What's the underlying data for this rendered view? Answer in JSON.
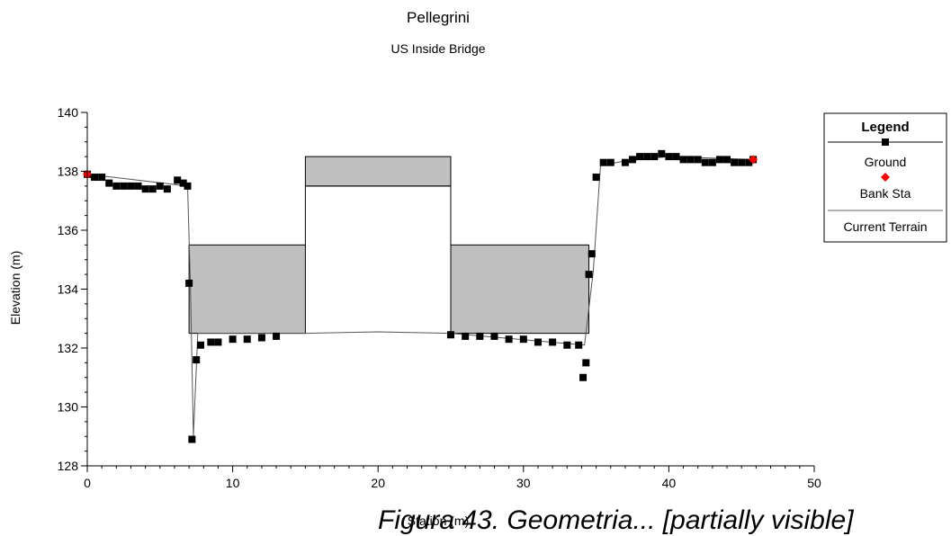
{
  "chart_data": {
    "type": "line",
    "title": "Pellegrini",
    "subtitle": "US Inside Bridge",
    "xlabel": "Station (m)",
    "ylabel": "Elevation (m)",
    "xlim": [
      0,
      50
    ],
    "ylim": [
      128,
      140
    ],
    "xticks": [
      0,
      10,
      20,
      30,
      40,
      50
    ],
    "yticks": [
      128,
      130,
      132,
      134,
      136,
      138,
      140
    ],
    "grid": false,
    "legend_position": "right",
    "legend": {
      "title": "Legend",
      "items": [
        "Ground",
        "Bank Sta",
        "Current Terrain"
      ]
    },
    "series": [
      {
        "name": "Ground",
        "color": "#000000",
        "marker": "square",
        "x": [
          0,
          0.5,
          1,
          1.5,
          2,
          2.5,
          3,
          3.5,
          4,
          4.5,
          5,
          5.5,
          6.2,
          6.6,
          6.9,
          7.0,
          7.2,
          7.5,
          7.8,
          8.5,
          9.0,
          10.0,
          11.0,
          12.0,
          13.0,
          25.0,
          26.0,
          27.0,
          28.0,
          29.0,
          30.0,
          31.0,
          32.0,
          33.0,
          33.8,
          34.1,
          34.3,
          34.5,
          34.7,
          35.0,
          35.5,
          36.0,
          37.0,
          37.5,
          38.0,
          38.5,
          39.0,
          39.5,
          40.0,
          40.5,
          41.0,
          41.5,
          42.0,
          42.5,
          43.0,
          43.5,
          44.0,
          44.5,
          45.0,
          45.5,
          45.8
        ],
        "y": [
          137.9,
          137.8,
          137.8,
          137.6,
          137.5,
          137.5,
          137.5,
          137.5,
          137.4,
          137.4,
          137.5,
          137.4,
          137.7,
          137.6,
          137.5,
          134.2,
          128.9,
          131.6,
          132.1,
          132.2,
          132.2,
          132.3,
          132.3,
          132.35,
          132.4,
          132.45,
          132.4,
          132.4,
          132.4,
          132.3,
          132.3,
          132.2,
          132.2,
          132.1,
          132.1,
          131.0,
          131.5,
          134.5,
          135.2,
          137.8,
          138.3,
          138.3,
          138.3,
          138.4,
          138.5,
          138.5,
          138.5,
          138.6,
          138.5,
          138.5,
          138.4,
          138.4,
          138.4,
          138.3,
          138.3,
          138.4,
          138.4,
          138.3,
          138.3,
          138.3,
          138.4
        ]
      },
      {
        "name": "Bank Sta",
        "color": "#ff0000",
        "marker": "diamond",
        "x": [
          0,
          45.8
        ],
        "y": [
          137.9,
          138.4
        ]
      },
      {
        "name": "Current Terrain",
        "color": "#000000",
        "marker": "none",
        "x": [
          0,
          6.9,
          7.1,
          7.3,
          7.6,
          15,
          20,
          25,
          34.2,
          34.8,
          35.3,
          37,
          40,
          45.8
        ],
        "y": [
          137.9,
          137.5,
          134.0,
          129.0,
          132.5,
          132.5,
          132.55,
          132.5,
          132.1,
          134.6,
          138.2,
          138.35,
          138.5,
          138.4
        ]
      }
    ],
    "bridge": {
      "deck_color": "#c0c0c0",
      "left_opening": {
        "x": [
          7.0,
          15.0
        ],
        "low_chord": 132.5,
        "high_chord": 135.5
      },
      "center_deck": {
        "x": [
          15.0,
          25.0
        ],
        "low_chord": 137.5,
        "high_chord": 138.5
      },
      "right_opening": {
        "x": [
          25.0,
          34.5
        ],
        "low_chord": 132.5,
        "high_chord": 135.5
      }
    }
  },
  "caption": "Figura 43. Geometria... [partially visible]"
}
